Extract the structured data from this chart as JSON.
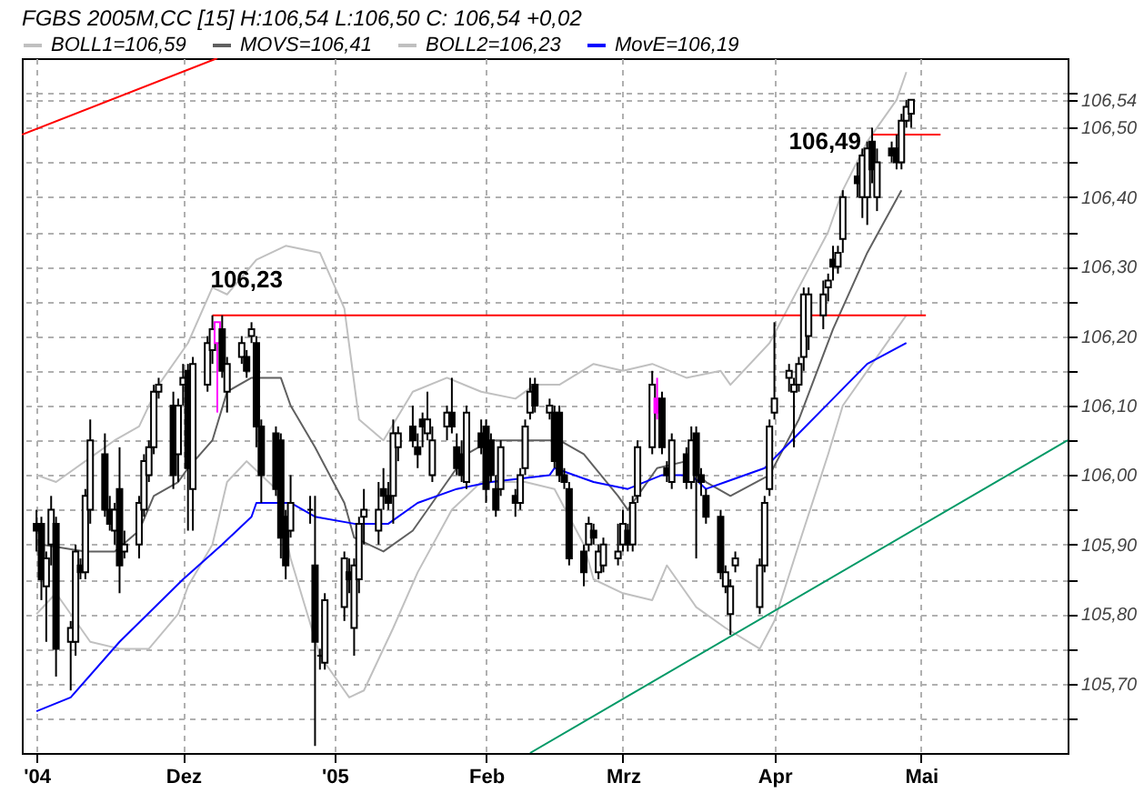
{
  "chart_data": {
    "type": "candlestick",
    "title": "FGBS 2005M,CC [15] H:106,54 L:106,50 C: 106,54 +0,02",
    "legend": "top",
    "grid": true,
    "xlim": [
      "2004-10-29",
      "2005-05-31"
    ],
    "xticks": [
      {
        "value": "2004-11-01",
        "label": "'04"
      },
      {
        "value": "2004-12-01",
        "label": "Dez"
      },
      {
        "value": "2005-01-01",
        "label": "'05"
      },
      {
        "value": "2005-02-01",
        "label": "Feb"
      },
      {
        "value": "2005-03-01",
        "label": "Mrz"
      },
      {
        "value": "2005-04-01",
        "label": "Apr"
      },
      {
        "value": "2005-05-01",
        "label": "Mai"
      }
    ],
    "ylim": [
      105.6,
      106.6
    ],
    "yticks": [
      {
        "value": 105.65,
        "label": null
      },
      {
        "value": 105.7,
        "label": "105,70"
      },
      {
        "value": 105.75,
        "label": null
      },
      {
        "value": 105.8,
        "label": "105,80"
      },
      {
        "value": 105.85,
        "label": null
      },
      {
        "value": 105.9,
        "label": "105,90"
      },
      {
        "value": 105.95,
        "label": null
      },
      {
        "value": 106.0,
        "label": "106,00"
      },
      {
        "value": 106.05,
        "label": null
      },
      {
        "value": 106.1,
        "label": "106,10"
      },
      {
        "value": 106.15,
        "label": null
      },
      {
        "value": 106.2,
        "label": "106,20"
      },
      {
        "value": 106.25,
        "label": null
      },
      {
        "value": 106.3,
        "label": "106,30"
      },
      {
        "value": 106.35,
        "label": null
      },
      {
        "value": 106.4,
        "label": "106,40"
      },
      {
        "value": 106.45,
        "label": null
      },
      {
        "value": 106.5,
        "label": "106,50"
      },
      {
        "value": 106.54,
        "label": "106,54"
      },
      {
        "value": 106.55,
        "label": null
      }
    ],
    "x": [
      "2004-11-01",
      "2004-11-02",
      "2004-11-03",
      "2004-11-04",
      "2004-11-05",
      "2004-11-08",
      "2004-11-09",
      "2004-11-10",
      "2004-11-11",
      "2004-11-12",
      "2004-11-15",
      "2004-11-16",
      "2004-11-17",
      "2004-11-18",
      "2004-11-19",
      "2004-11-22",
      "2004-11-23",
      "2004-11-24",
      "2004-11-25",
      "2004-11-26",
      "2004-11-29",
      "2004-11-30",
      "2004-12-01",
      "2004-12-02",
      "2004-12-03",
      "2004-12-06",
      "2004-12-07",
      "2004-12-08",
      "2004-12-09",
      "2004-12-10",
      "2004-12-13",
      "2004-12-14",
      "2004-12-15",
      "2004-12-16",
      "2004-12-17",
      "2004-12-20",
      "2004-12-21",
      "2004-12-22",
      "2004-12-23",
      "2004-12-27",
      "2004-12-28",
      "2004-12-29",
      "2004-12-30",
      "2005-01-03",
      "2005-01-04",
      "2005-01-05",
      "2005-01-06",
      "2005-01-07",
      "2005-01-10",
      "2005-01-11",
      "2005-01-12",
      "2005-01-13",
      "2005-01-14",
      "2005-01-17",
      "2005-01-18",
      "2005-01-19",
      "2005-01-20",
      "2005-01-21",
      "2005-01-24",
      "2005-01-25",
      "2005-01-26",
      "2005-01-27",
      "2005-01-28",
      "2005-01-31",
      "2005-02-01",
      "2005-02-02",
      "2005-02-03",
      "2005-02-04",
      "2005-02-07",
      "2005-02-08",
      "2005-02-09",
      "2005-02-10",
      "2005-02-11",
      "2005-02-14",
      "2005-02-15",
      "2005-02-16",
      "2005-02-17",
      "2005-02-18",
      "2005-02-21",
      "2005-02-22",
      "2005-02-23",
      "2005-02-24",
      "2005-02-25",
      "2005-02-28",
      "2005-03-01",
      "2005-03-02",
      "2005-03-03",
      "2005-03-04",
      "2005-03-07",
      "2005-03-08",
      "2005-03-09",
      "2005-03-10",
      "2005-03-11",
      "2005-03-14",
      "2005-03-15",
      "2005-03-16",
      "2005-03-17",
      "2005-03-18",
      "2005-03-21",
      "2005-03-22",
      "2005-03-23",
      "2005-03-24",
      "2005-03-29",
      "2005-03-30",
      "2005-03-31",
      "2005-04-01",
      "2005-04-04",
      "2005-04-05",
      "2005-04-06",
      "2005-04-07",
      "2005-04-08",
      "2005-04-11",
      "2005-04-12",
      "2005-04-13",
      "2005-04-14",
      "2005-04-15",
      "2005-04-18",
      "2005-04-19",
      "2005-04-20",
      "2005-04-21",
      "2005-04-22",
      "2005-04-25",
      "2005-04-26",
      "2005-04-27",
      "2005-04-28",
      "2005-04-29"
    ],
    "ohlc": [
      [
        105.93,
        105.95,
        105.89,
        105.92
      ],
      [
        105.93,
        105.94,
        105.82,
        105.85
      ],
      [
        105.84,
        105.89,
        105.76,
        105.88
      ],
      [
        105.9,
        105.97,
        105.87,
        105.95
      ],
      [
        105.93,
        105.94,
        105.71,
        105.75
      ],
      [
        105.76,
        105.79,
        105.69,
        105.78
      ],
      [
        105.76,
        105.9,
        105.74,
        105.89
      ],
      [
        105.87,
        105.88,
        105.85,
        105.86
      ],
      [
        105.86,
        105.98,
        105.85,
        105.97
      ],
      [
        105.95,
        106.08,
        105.93,
        106.05
      ],
      [
        106.03,
        106.06,
        105.94,
        105.95
      ],
      [
        105.95,
        105.97,
        105.92,
        105.93
      ],
      [
        105.92,
        105.96,
        105.9,
        105.95
      ],
      [
        105.98,
        106.04,
        105.83,
        105.87
      ],
      [
        105.89,
        105.92,
        105.88,
        105.9
      ],
      [
        105.9,
        105.97,
        105.88,
        105.96
      ],
      [
        105.95,
        106.03,
        105.94,
        106.02
      ],
      [
        106.0,
        106.05,
        105.99,
        106.04
      ],
      [
        106.04,
        106.13,
        106.03,
        106.12
      ],
      [
        106.12,
        106.14,
        106.11,
        106.13
      ],
      [
        106.1,
        106.12,
        105.98,
        106.0
      ],
      [
        106.03,
        106.11,
        105.99,
        106.1
      ],
      [
        106.13,
        106.16,
        106.1,
        106.14
      ],
      [
        106.15,
        106.16,
        105.92,
        106.01
      ],
      [
        105.98,
        106.17,
        105.92,
        106.16
      ],
      [
        106.13,
        106.2,
        106.12,
        106.19
      ],
      [
        106.18,
        106.23,
        106.16,
        106.21
      ],
      [
        106.19,
        106.22,
        106.09,
        106.22
      ],
      [
        106.21,
        106.23,
        106.14,
        106.15
      ],
      [
        106.12,
        106.17,
        106.09,
        106.16
      ],
      [
        106.17,
        106.2,
        106.16,
        106.19
      ],
      [
        106.17,
        106.18,
        106.14,
        106.15
      ],
      [
        106.2,
        106.22,
        106.19,
        106.21
      ],
      [
        106.19,
        106.2,
        106.04,
        106.07
      ],
      [
        106.07,
        106.08,
        105.96,
        106.0
      ],
      [
        106.06,
        106.07,
        105.97,
        105.98
      ],
      [
        106.05,
        106.06,
        105.88,
        105.91
      ],
      [
        105.94,
        105.95,
        105.85,
        105.87
      ],
      [
        105.92,
        106.0,
        105.91,
        105.96
      ],
      [
        105.95,
        105.97,
        105.93,
        105.95
      ],
      [
        105.87,
        105.97,
        105.61,
        105.76
      ],
      [
        105.74,
        105.75,
        105.72,
        105.74
      ],
      [
        105.73,
        105.83,
        105.72,
        105.82
      ],
      [
        105.81,
        105.89,
        105.79,
        105.88
      ],
      [
        105.86,
        105.88,
        105.83,
        105.85
      ],
      [
        105.78,
        105.88,
        105.74,
        105.87
      ],
      [
        105.85,
        105.94,
        105.83,
        105.93
      ],
      [
        105.94,
        105.98,
        105.9,
        105.95
      ],
      [
        105.92,
        105.99,
        105.9,
        105.95
      ],
      [
        105.98,
        106.01,
        105.95,
        105.97
      ],
      [
        105.97,
        105.99,
        105.95,
        105.96
      ],
      [
        105.97,
        106.08,
        105.93,
        106.06
      ],
      [
        106.04,
        106.07,
        106.02,
        106.06
      ],
      [
        106.07,
        106.1,
        106.04,
        106.05
      ],
      [
        106.04,
        106.06,
        106.01,
        106.03
      ],
      [
        106.08,
        106.09,
        106.04,
        106.07
      ],
      [
        106.06,
        106.12,
        106.05,
        106.08
      ],
      [
        106.0,
        106.07,
        105.99,
        106.05
      ],
      [
        106.07,
        106.1,
        106.05,
        106.09
      ],
      [
        106.09,
        106.14,
        106.06,
        106.07
      ],
      [
        106.04,
        106.06,
        106.0,
        106.01
      ],
      [
        106.03,
        106.05,
        105.99,
        106.0
      ],
      [
        105.99,
        106.1,
        105.98,
        106.09
      ],
      [
        106.06,
        106.08,
        106.03,
        106.04
      ],
      [
        106.07,
        106.08,
        105.96,
        105.98
      ],
      [
        106.05,
        106.06,
        105.99,
        106.0
      ],
      [
        105.98,
        106.0,
        105.94,
        105.95
      ],
      [
        105.98,
        106.05,
        105.97,
        106.04
      ],
      [
        105.97,
        105.98,
        105.94,
        105.96
      ],
      [
        105.96,
        106.01,
        105.95,
        106.0
      ],
      [
        106.01,
        106.08,
        106.0,
        106.07
      ],
      [
        106.09,
        106.14,
        106.08,
        106.12
      ],
      [
        106.13,
        106.14,
        106.09,
        106.1
      ],
      [
        106.09,
        106.11,
        106.08,
        106.1
      ],
      [
        106.09,
        106.1,
        106.01,
        106.02
      ],
      [
        106.09,
        106.1,
        105.99,
        106.0
      ],
      [
        106.0,
        106.01,
        105.98,
        105.99
      ],
      [
        105.98,
        105.99,
        105.87,
        105.88
      ],
      [
        105.89,
        105.9,
        105.84,
        105.86
      ],
      [
        105.9,
        105.94,
        105.89,
        105.93
      ],
      [
        105.92,
        105.93,
        105.9,
        105.91
      ],
      [
        105.86,
        105.9,
        105.85,
        105.89
      ],
      [
        105.87,
        105.91,
        105.86,
        105.9
      ],
      [
        105.88,
        105.93,
        105.87,
        105.89
      ],
      [
        105.9,
        105.95,
        105.89,
        105.93
      ],
      [
        105.92,
        105.93,
        105.89,
        105.9
      ],
      [
        105.9,
        105.97,
        105.89,
        105.96
      ],
      [
        105.97,
        106.05,
        105.96,
        106.04
      ],
      [
        106.04,
        106.15,
        106.03,
        106.13
      ],
      [
        106.11,
        106.14,
        106.08,
        106.09
      ],
      [
        106.11,
        106.12,
        106.03,
        106.04
      ],
      [
        106.01,
        106.02,
        105.99,
        106.0
      ],
      [
        105.99,
        106.06,
        105.98,
        106.05
      ],
      [
        106.03,
        106.04,
        105.98,
        105.99
      ],
      [
        105.99,
        106.07,
        105.98,
        106.05
      ],
      [
        106.06,
        106.07,
        105.88,
        106.0
      ],
      [
        106.0,
        106.01,
        105.97,
        105.99
      ],
      [
        105.97,
        105.98,
        105.93,
        105.94
      ],
      [
        105.94,
        105.95,
        105.85,
        105.86
      ],
      [
        105.84,
        105.87,
        105.83,
        105.86
      ],
      [
        105.8,
        105.85,
        105.77,
        105.84
      ],
      [
        105.87,
        105.89,
        105.86,
        105.88
      ],
      [
        105.81,
        105.88,
        105.8,
        105.87
      ],
      [
        105.87,
        105.97,
        105.86,
        105.96
      ],
      [
        105.98,
        106.08,
        105.97,
        106.07
      ],
      [
        106.09,
        106.22,
        106.08,
        106.11
      ],
      [
        106.14,
        106.16,
        106.12,
        106.15
      ],
      [
        106.12,
        106.14,
        106.04,
        106.13
      ],
      [
        106.13,
        106.17,
        106.12,
        106.16
      ],
      [
        106.17,
        106.27,
        106.15,
        106.26
      ],
      [
        106.2,
        106.27,
        106.18,
        106.26
      ],
      [
        106.23,
        106.28,
        106.21,
        106.26
      ],
      [
        106.27,
        106.29,
        106.25,
        106.28
      ],
      [
        106.31,
        106.33,
        106.28,
        106.3
      ],
      [
        106.3,
        106.33,
        106.29,
        106.32
      ],
      [
        106.34,
        106.41,
        106.32,
        106.4
      ],
      [
        106.43,
        106.45,
        106.4,
        106.42
      ],
      [
        106.4,
        106.47,
        106.37,
        106.46
      ],
      [
        106.4,
        106.48,
        106.36,
        106.47
      ],
      [
        106.48,
        106.5,
        106.42,
        106.44
      ],
      [
        106.4,
        106.47,
        106.38,
        106.45
      ],
      [
        106.47,
        106.48,
        106.45,
        106.46
      ],
      [
        106.47,
        106.49,
        106.44,
        106.45
      ],
      [
        106.45,
        106.52,
        106.44,
        106.51
      ],
      [
        106.51,
        106.54,
        106.5,
        106.53
      ],
      [
        106.52,
        106.54,
        106.5,
        106.54
      ]
    ],
    "colors": [
      "#000000",
      "#000000",
      "#000000",
      "#000000",
      "#000000",
      "#000000",
      "#000000",
      "#000000",
      "#000000",
      "#000000",
      "#000000",
      "#000000",
      "#000000",
      "#000000",
      "#000000",
      "#000000",
      "#000000",
      "#000000",
      "#000000",
      "#000000",
      "#000000",
      "#000000",
      "#000000",
      "#000000",
      "#000000",
      "#000000",
      "#000000",
      "#ff00ff",
      "#000000",
      "#000000",
      "#000000",
      "#000000",
      "#000000",
      "#000000",
      "#000000",
      "#000000",
      "#000000",
      "#000000",
      "#000000",
      "#000000",
      "#000000",
      "#000000",
      "#000000",
      "#000000",
      "#000000",
      "#000000",
      "#000000",
      "#000000",
      "#000000",
      "#000000",
      "#000000",
      "#000000",
      "#000000",
      "#000000",
      "#000000",
      "#000000",
      "#000000",
      "#000000",
      "#000000",
      "#000000",
      "#000000",
      "#000000",
      "#000000",
      "#000000",
      "#000000",
      "#000000",
      "#000000",
      "#000000",
      "#000000",
      "#000000",
      "#000000",
      "#000000",
      "#000000",
      "#000000",
      "#000000",
      "#000000",
      "#000000",
      "#000000",
      "#000000",
      "#000000",
      "#000000",
      "#000000",
      "#000000",
      "#000000",
      "#000000",
      "#000000",
      "#000000",
      "#000000",
      "#000000",
      "#ff00ff",
      "#000000",
      "#000000",
      "#000000",
      "#000000",
      "#000000",
      "#000000",
      "#000000",
      "#000000",
      "#000000",
      "#000000",
      "#000000",
      "#000000",
      "#000000",
      "#000000",
      "#000000",
      "#000000",
      "#000000",
      "#000000",
      "#000000",
      "#000000",
      "#000000",
      "#000000",
      "#000000",
      "#000000",
      "#000000",
      "#000000",
      "#000000",
      "#000000",
      "#000000",
      "#000000",
      "#000000",
      "#000000",
      "#000000",
      "#000000",
      "#000000",
      "#000000"
    ],
    "series": [
      {
        "type": "line",
        "name": "BOLL1=106,59",
        "color": "#c0c0c0",
        "x": [
          "2004-11-01",
          "2004-11-05",
          "2004-11-11",
          "2004-11-17",
          "2004-11-22",
          "2004-11-26",
          "2004-12-02",
          "2004-12-07",
          "2004-12-10",
          "2004-12-16",
          "2004-12-22",
          "2004-12-29",
          "2005-01-03",
          "2005-01-06",
          "2005-01-11",
          "2005-01-17",
          "2005-01-24",
          "2005-01-31",
          "2005-02-07",
          "2005-02-11",
          "2005-02-16",
          "2005-02-23",
          "2005-03-01",
          "2005-03-07",
          "2005-03-14",
          "2005-03-21",
          "2005-03-23",
          "2005-03-31",
          "2005-04-06",
          "2005-04-12",
          "2005-04-15",
          "2005-04-20",
          "2005-04-26",
          "2005-04-28"
        ],
        "values": [
          106.0,
          105.99,
          106.02,
          106.05,
          106.07,
          106.13,
          106.19,
          106.27,
          106.26,
          106.31,
          106.33,
          106.32,
          106.24,
          106.08,
          106.05,
          106.12,
          106.14,
          106.12,
          106.11,
          106.13,
          106.13,
          106.16,
          106.15,
          106.16,
          106.14,
          106.15,
          106.13,
          106.19,
          106.27,
          106.35,
          106.41,
          106.48,
          106.54,
          106.58
        ]
      },
      {
        "type": "line",
        "name": "MOVS=106,41",
        "color": "#606060",
        "x": [
          "2004-11-02",
          "2004-11-11",
          "2004-11-17",
          "2004-11-22",
          "2004-11-25",
          "2004-11-30",
          "2004-12-02",
          "2004-12-07",
          "2004-12-10",
          "2004-12-15",
          "2004-12-21",
          "2004-12-23",
          "2004-12-28",
          "2005-01-03",
          "2005-01-05",
          "2005-01-11",
          "2005-01-17",
          "2005-01-24",
          "2005-01-28",
          "2005-02-02",
          "2005-02-09",
          "2005-02-16",
          "2005-02-21",
          "2005-02-28",
          "2005-03-02",
          "2005-03-08",
          "2005-03-14",
          "2005-03-18",
          "2005-03-23",
          "2005-03-31",
          "2005-04-06",
          "2005-04-13",
          "2005-04-20",
          "2005-04-27"
        ],
        "values": [
          105.9,
          105.89,
          105.89,
          105.92,
          105.97,
          105.99,
          106.01,
          106.05,
          106.12,
          106.14,
          106.14,
          106.1,
          106.04,
          105.96,
          105.91,
          105.89,
          105.92,
          105.99,
          106.03,
          106.05,
          106.05,
          106.05,
          106.03,
          105.97,
          105.95,
          106.01,
          106.02,
          105.99,
          105.97,
          106.0,
          106.08,
          106.21,
          106.32,
          106.41
        ]
      },
      {
        "type": "line",
        "name": "BOLL2=106,23",
        "color": "#c0c0c0",
        "x": [
          "2004-11-01",
          "2004-11-05",
          "2004-11-12",
          "2004-11-18",
          "2004-11-24",
          "2004-11-30",
          "2004-12-02",
          "2004-12-07",
          "2004-12-10",
          "2004-12-14",
          "2004-12-20",
          "2004-12-23",
          "2004-12-29",
          "2005-01-04",
          "2005-01-07",
          "2005-01-13",
          "2005-01-18",
          "2005-01-25",
          "2005-01-31",
          "2005-02-04",
          "2005-02-09",
          "2005-02-15",
          "2005-02-21",
          "2005-02-23",
          "2005-03-01",
          "2005-03-07",
          "2005-03-10",
          "2005-03-16",
          "2005-03-22",
          "2005-03-29",
          "2005-04-01",
          "2005-04-06",
          "2005-04-12",
          "2005-04-15",
          "2005-04-21",
          "2005-04-28"
        ],
        "values": [
          105.8,
          105.83,
          105.76,
          105.75,
          105.75,
          105.8,
          105.84,
          105.9,
          105.99,
          106.02,
          105.98,
          105.88,
          105.74,
          105.68,
          105.69,
          105.78,
          105.86,
          105.95,
          105.99,
          105.99,
          105.99,
          105.98,
          105.9,
          105.85,
          105.83,
          105.82,
          105.87,
          105.81,
          105.78,
          105.75,
          105.79,
          105.9,
          106.03,
          106.1,
          106.16,
          106.23
        ]
      },
      {
        "type": "line",
        "name": "MovE=106,19",
        "color": "#0000ff",
        "x": [
          "2004-11-01",
          "2004-11-08",
          "2004-11-18",
          "2004-12-01",
          "2004-12-09",
          "2004-12-15",
          "2004-12-16",
          "2004-12-23",
          "2004-12-28",
          "2005-01-05",
          "2005-01-12",
          "2005-01-18",
          "2005-01-26",
          "2005-02-02",
          "2005-02-14",
          "2005-02-15",
          "2005-02-23",
          "2005-03-02",
          "2005-03-09",
          "2005-03-15",
          "2005-03-18",
          "2005-03-22",
          "2005-03-30",
          "2005-04-06",
          "2005-04-13",
          "2005-04-20",
          "2005-04-28"
        ],
        "values": [
          105.66,
          105.68,
          105.76,
          105.85,
          105.9,
          105.94,
          105.96,
          105.96,
          105.94,
          105.93,
          105.93,
          105.96,
          105.98,
          105.99,
          106.0,
          106.01,
          105.99,
          105.98,
          106.0,
          106.0,
          105.98,
          105.99,
          106.01,
          106.06,
          106.11,
          106.16,
          106.19
        ]
      },
      {
        "type": "line",
        "color": "#ff0000",
        "x": [
          "2004-10-29",
          "2004-12-08"
        ],
        "values": [
          106.49,
          106.6
        ]
      },
      {
        "type": "line",
        "color": "#ff0000",
        "x": [
          "2004-12-07",
          "2005-05-02"
        ],
        "values": [
          106.23,
          106.23
        ]
      },
      {
        "type": "line",
        "color": "#ff0000",
        "x": [
          "2005-04-21",
          "2005-05-05"
        ],
        "values": [
          106.49,
          106.49
        ]
      },
      {
        "type": "line",
        "color": "#009966",
        "x": [
          "2005-02-10",
          "2005-05-31"
        ],
        "values": [
          105.6,
          106.05
        ]
      }
    ],
    "annotations": [
      {
        "text": "106,23",
        "x": "2004-12-14",
        "y": 106.28
      },
      {
        "text": "106,49",
        "x": "2005-04-21",
        "y": 106.49
      }
    ]
  }
}
